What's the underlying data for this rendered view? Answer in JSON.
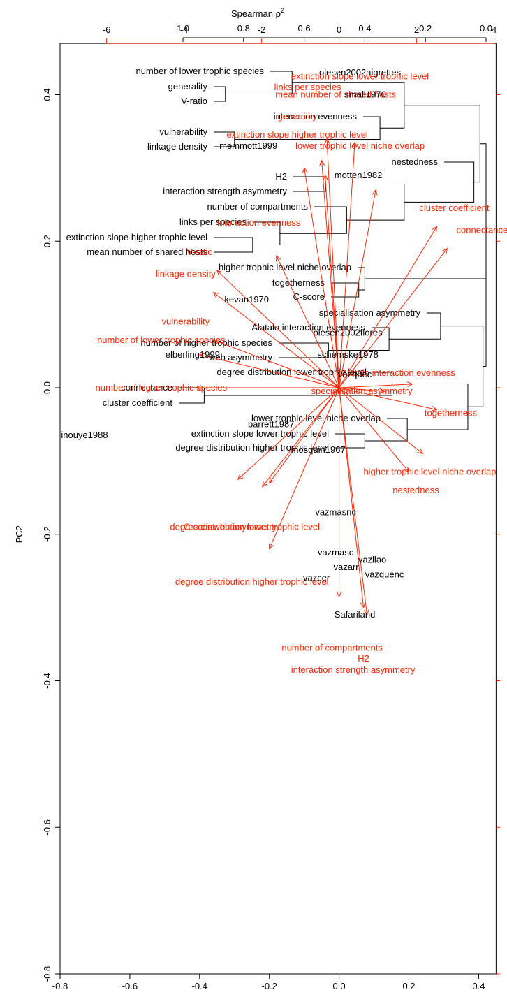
{
  "chart_data": [
    {
      "type": "dendrogram",
      "axis_label": "Spearman ρ",
      "axis_label_sup": "2",
      "axis_ticks": [
        1.0,
        0.8,
        0.6,
        0.4,
        0.2,
        0.0
      ],
      "axis_tick_labels": [
        "1.0",
        "0.8",
        "0.6",
        "0.4",
        "0.2",
        "0.0"
      ],
      "xlim": [
        1.0,
        0.0
      ],
      "leaves": [
        "number of lower trophic species",
        "generality",
        "V-ratio",
        "interaction evenness",
        "vulnerability",
        "linkage density",
        "nestedness",
        "H2",
        "interaction strength asymmetry",
        "number of compartments",
        "links per species",
        "extinction slope higher trophic level",
        "mean number of shared hosts",
        "higher trophic level niche overlap",
        "togetherness",
        "C-score",
        "specialisation asymmetry",
        "Alatalo interaction evenness",
        "number of higher trophic species",
        "web asymmetry",
        "degree distribution lower trophic level",
        "connectance",
        "cluster coefficient",
        "lower trophic level niche overlap",
        "extinction slope lower trophic level",
        "degree distribution higher trophic level"
      ],
      "merges": [
        {
          "a": "generality",
          "b": "V-ratio",
          "height": 0.86
        },
        {
          "a": "number of lower trophic species",
          "b": "[generality, V-ratio]",
          "height": 0.64
        },
        {
          "a": "vulnerability",
          "b": "linkage density",
          "height": 0.83
        },
        {
          "a": "interaction evenness",
          "b": "[vulnerability, linkage density]",
          "height": 0.35
        },
        {
          "a": "[lower trophic species group]",
          "b": "[interaction evenness group]",
          "height": 0.27
        },
        {
          "a": "H2",
          "b": "interaction strength asymmetry",
          "height": 0.53
        },
        {
          "a": "mean number of shared hosts",
          "b": "extinction slope higher trophic level",
          "height": 0.77
        },
        {
          "a": "links per species",
          "b": "[extinction slope, shared hosts]",
          "height": 0.68
        },
        {
          "a": "number of compartments",
          "b": "[links per species group]",
          "height": 0.46
        },
        {
          "a": "[H2 group]",
          "b": "[compartments group]",
          "height": 0.27
        },
        {
          "a": "nestedness",
          "b": "[H2 / compartments group]",
          "height": 0.04
        },
        {
          "a": "[upper block]",
          "b": "[nestedness block]",
          "height": 0.02
        },
        {
          "a": "togetherness",
          "b": "C-score",
          "height": 0.42
        },
        {
          "a": "higher trophic level niche overlap",
          "b": "[togetherness, C-score]",
          "height": 0.4
        },
        {
          "a": "number of higher trophic species",
          "b": "web asymmetry",
          "height": 0.52
        },
        {
          "a": "Alatalo interaction evenness",
          "b": "[higher trophic species, web asymmetry]",
          "height": 0.32
        },
        {
          "a": "specialisation asymmetry",
          "b": "[Alatalo group]",
          "height": 0.15
        },
        {
          "a": "connectance",
          "b": "cluster coefficient",
          "height": 0.93
        },
        {
          "a": "degree distribution lower trophic level",
          "b": "[connectance, cluster coefficient]",
          "height": 0.31
        },
        {
          "a": "extinction slope lower trophic level",
          "b": "degree distribution higher trophic level",
          "height": 0.4
        },
        {
          "a": "lower trophic level niche overlap",
          "b": "[extinction slope lower group]",
          "height": 0.26
        },
        {
          "a": "[degree distribution lower group]",
          "b": "[lower niche overlap group]",
          "height": 0.06
        },
        {
          "a": "[specialisation asymmetry block]",
          "b": "[degree distribution block]",
          "height": 0.01
        },
        {
          "a": "[niche overlap / togetherness block]",
          "b": "[lower block]",
          "height": 0.0
        },
        {
          "a": "[upper half]",
          "b": "[lower half]",
          "height": 0.0
        }
      ]
    },
    {
      "type": "biplot",
      "ylabel": "PC2",
      "xlim": [
        -0.8,
        0.45
      ],
      "ylim": [
        -0.8,
        0.47
      ],
      "x_ticks": [
        -0.8,
        -0.6,
        -0.4,
        -0.2,
        0.0,
        0.2,
        0.4
      ],
      "x_tick_labels": [
        "-0.8",
        "-0.6",
        "-0.4",
        "-0.2",
        "0.0",
        "0.2",
        "0.4"
      ],
      "y_ticks": [
        -0.8,
        -0.6,
        -0.4,
        -0.2,
        0.0,
        0.2,
        0.4
      ],
      "y_tick_labels": [
        "-0.8",
        "-0.6",
        "-0.4",
        "-0.2",
        "0.0",
        "0.2",
        "0.4"
      ],
      "top_ticks": [
        -6,
        -4,
        -2,
        0,
        2,
        4
      ],
      "top_tick_labels": [
        "-6",
        "-4",
        "-2",
        "0",
        "2",
        "4"
      ],
      "right_ticks": [
        0.4,
        0.2,
        0.0,
        -0.2,
        -0.4,
        -0.6,
        -0.8
      ],
      "colors": {
        "sites": "#000000",
        "loadings": "#ff2400"
      },
      "sites": [
        {
          "label": "olesen2002aigrettes",
          "x": 0.06,
          "y": 0.43
        },
        {
          "label": "small1976",
          "x": 0.075,
          "y": 0.4
        },
        {
          "label": "memmott1999",
          "x": -0.26,
          "y": 0.33
        },
        {
          "label": "motten1982",
          "x": 0.055,
          "y": 0.29
        },
        {
          "label": "kevan1970",
          "x": -0.265,
          "y": 0.12
        },
        {
          "label": "olesen2002flores",
          "x": 0.025,
          "y": 0.075
        },
        {
          "label": "schemske1978",
          "x": 0.025,
          "y": 0.045
        },
        {
          "label": "elberling1999",
          "x": -0.42,
          "y": 0.045
        },
        {
          "label": "vazquec",
          "x": 0.045,
          "y": 0.018
        },
        {
          "label": "inouye1988",
          "x": -0.73,
          "y": -0.065
        },
        {
          "label": "barrett1987",
          "x": -0.195,
          "y": -0.05
        },
        {
          "label": "mosquin1967",
          "x": -0.06,
          "y": -0.085
        },
        {
          "label": "vazmasnc",
          "x": -0.01,
          "y": -0.17
        },
        {
          "label": "vazmasc",
          "x": -0.01,
          "y": -0.225
        },
        {
          "label": "vazarr",
          "x": 0.02,
          "y": -0.245
        },
        {
          "label": "vazllao",
          "x": 0.095,
          "y": -0.235
        },
        {
          "label": "vazcer",
          "x": -0.065,
          "y": -0.26
        },
        {
          "label": "vazquenc",
          "x": 0.13,
          "y": -0.255
        },
        {
          "label": "Safariland",
          "x": 0.045,
          "y": -0.31
        }
      ],
      "loadings": [
        {
          "label": "links per species",
          "x": -0.09,
          "y": 0.41,
          "ax": -0.035,
          "ay": 0.34
        },
        {
          "label": "extinction slope lower trophic level",
          "x": 0.06,
          "y": 0.425,
          "ax": 0.045,
          "ay": 0.335
        },
        {
          "label": "mean number of shared hosts",
          "x": -0.01,
          "y": 0.4,
          "ax": -0.05,
          "ay": 0.31
        },
        {
          "label": "generality",
          "x": -0.12,
          "y": 0.37,
          "ax": -0.1,
          "ay": 0.3
        },
        {
          "label": "extinction slope higher trophic level",
          "x": -0.12,
          "y": 0.345,
          "ax": -0.04,
          "ay": 0.29
        },
        {
          "label": "lower trophic level niche overlap",
          "x": 0.06,
          "y": 0.33,
          "ax": 0.105,
          "ay": 0.27
        },
        {
          "label": "cluster coefficient",
          "x": 0.33,
          "y": 0.245,
          "ax": 0.28,
          "ay": 0.22
        },
        {
          "label": "connectance",
          "x": 0.41,
          "y": 0.215,
          "ax": 0.31,
          "ay": 0.19
        },
        {
          "label": "interaction evenness",
          "x": -0.23,
          "y": 0.225,
          "ax": -0.18,
          "ay": 0.18
        },
        {
          "label": "V-ratio",
          "x": -0.4,
          "y": 0.185,
          "ax": -0.35,
          "ay": 0.16
        },
        {
          "label": "linkage density",
          "x": -0.44,
          "y": 0.155,
          "ax": -0.36,
          "ay": 0.13
        },
        {
          "label": "vulnerability",
          "x": -0.44,
          "y": 0.09,
          "ax": -0.36,
          "ay": 0.065
        },
        {
          "label": "number of lower trophic species",
          "x": -0.51,
          "y": 0.065,
          "ax": -0.4,
          "ay": 0.045
        },
        {
          "label": "number of higher trophic species",
          "x": -0.51,
          "y": 0.0,
          "ax": -0.41,
          "ay": 0.0
        },
        {
          "label": "Alatalo interaction evenness",
          "x": 0.17,
          "y": 0.02,
          "ax": 0.21,
          "ay": 0.005
        },
        {
          "label": "specialisation asymmetry",
          "x": 0.065,
          "y": -0.005,
          "ax": 0.13,
          "ay": -0.005
        },
        {
          "label": "togetherness",
          "x": 0.32,
          "y": -0.035,
          "ax": 0.28,
          "ay": -0.03
        },
        {
          "label": "higher trophic level niche overlap",
          "x": 0.26,
          "y": -0.115,
          "ax": 0.24,
          "ay": -0.09
        },
        {
          "label": "nestedness",
          "x": 0.22,
          "y": -0.14,
          "ax": 0.2,
          "ay": -0.115
        },
        {
          "label": "C-score",
          "x": -0.4,
          "y": -0.19,
          "ax": -0.29,
          "ay": -0.125
        },
        {
          "label": "web asymmetry",
          "x": -0.27,
          "y": -0.19,
          "ax": -0.22,
          "ay": -0.135
        },
        {
          "label": "degree distribution lower trophic level",
          "x": -0.27,
          "y": -0.19,
          "ax": -0.2,
          "ay": -0.13
        },
        {
          "label": "degree distribution higher trophic level",
          "x": -0.25,
          "y": -0.265,
          "ax": -0.2,
          "ay": -0.22
        },
        {
          "label": "number of compartments",
          "x": -0.02,
          "y": -0.355,
          "ax": 0.0,
          "ay": -0.285
        },
        {
          "label": "H2",
          "x": 0.07,
          "y": -0.37,
          "ax": 0.08,
          "ay": -0.31
        },
        {
          "label": "interaction strength asymmetry",
          "x": 0.04,
          "y": -0.385,
          "ax": 0.07,
          "ay": -0.3
        }
      ]
    }
  ]
}
